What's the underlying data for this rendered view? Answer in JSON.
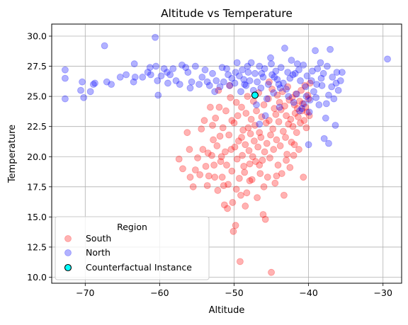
{
  "chart_data": {
    "type": "scatter",
    "title": "Altitude vs Temperature",
    "xlabel": "Altitude",
    "ylabel": "Temperature",
    "xlim": [
      -74.5,
      -27.5
    ],
    "ylim": [
      9.5,
      31.0
    ],
    "xticks": [
      -70,
      -60,
      -50,
      -40,
      -30
    ],
    "yticks": [
      10.0,
      12.5,
      15.0,
      17.5,
      20.0,
      22.5,
      25.0,
      27.5,
      30.0
    ],
    "grid": true,
    "legend": {
      "title": "Region",
      "placement": "lower-left",
      "entries": [
        "South",
        "North",
        "Counterfactual Instance"
      ]
    },
    "series": [
      {
        "name": "South",
        "color": "#ff0000",
        "alpha": 0.3,
        "points": [
          [
            -57.4,
            19.8
          ],
          [
            -56.9,
            19.0
          ],
          [
            -56.3,
            22.0
          ],
          [
            -56.0,
            20.6
          ],
          [
            -55.5,
            17.5
          ],
          [
            -55.2,
            18.9
          ],
          [
            -54.9,
            19.9
          ],
          [
            -54.6,
            18.5
          ],
          [
            -54.4,
            22.3
          ],
          [
            -54.2,
            20.6
          ],
          [
            -54.0,
            23.0
          ],
          [
            -53.8,
            19.2
          ],
          [
            -53.6,
            17.6
          ],
          [
            -53.4,
            18.4
          ],
          [
            -53.2,
            24.1
          ],
          [
            -53.0,
            20.1
          ],
          [
            -52.9,
            22.6
          ],
          [
            -52.7,
            19.3
          ],
          [
            -52.6,
            18.3
          ],
          [
            -52.5,
            23.2
          ],
          [
            -52.3,
            20.9
          ],
          [
            -52.2,
            17.2
          ],
          [
            -52.0,
            24.1
          ],
          [
            -51.9,
            21.7
          ],
          [
            -51.8,
            19.6
          ],
          [
            -51.6,
            18.3
          ],
          [
            -51.5,
            22.4
          ],
          [
            -51.4,
            17.6
          ],
          [
            -51.3,
            16.0
          ],
          [
            -51.2,
            20.4
          ],
          [
            -51.1,
            23.8
          ],
          [
            -51.0,
            19.3
          ],
          [
            -50.9,
            15.7
          ],
          [
            -50.8,
            17.7
          ],
          [
            -50.7,
            21.8
          ],
          [
            -50.6,
            25.9
          ],
          [
            -50.5,
            24.9
          ],
          [
            -50.4,
            20.6
          ],
          [
            -50.3,
            18.8
          ],
          [
            -50.2,
            16.2
          ],
          [
            -50.1,
            13.8
          ],
          [
            -50.0,
            22.8
          ],
          [
            -49.9,
            20.8
          ],
          [
            -49.8,
            14.3
          ],
          [
            -49.7,
            17.3
          ],
          [
            -49.6,
            19.8
          ],
          [
            -49.5,
            23.4
          ],
          [
            -49.4,
            21.3
          ],
          [
            -49.3,
            18.2
          ],
          [
            -49.2,
            11.3
          ],
          [
            -49.1,
            16.8
          ],
          [
            -49.0,
            24.1
          ],
          [
            -48.9,
            20.1
          ],
          [
            -48.8,
            22.2
          ],
          [
            -48.7,
            19.2
          ],
          [
            -48.6,
            18.7
          ],
          [
            -48.5,
            21.0
          ],
          [
            -48.4,
            23.6
          ],
          [
            -48.3,
            17.0
          ],
          [
            -48.2,
            25.0
          ],
          [
            -48.1,
            22.4
          ],
          [
            -48.0,
            20.5
          ],
          [
            -47.9,
            19.4
          ],
          [
            -47.8,
            21.9
          ],
          [
            -47.7,
            23.1
          ],
          [
            -47.6,
            18.1
          ],
          [
            -47.5,
            20.0
          ],
          [
            -47.4,
            24.6
          ],
          [
            -47.3,
            21.3
          ],
          [
            -47.2,
            22.6
          ],
          [
            -47.1,
            19.6
          ],
          [
            -47.0,
            23.8
          ],
          [
            -46.9,
            16.6
          ],
          [
            -46.8,
            20.8
          ],
          [
            -46.7,
            25.3
          ],
          [
            -46.6,
            22.0
          ],
          [
            -46.5,
            18.6
          ],
          [
            -46.4,
            21.6
          ],
          [
            -46.3,
            23.3
          ],
          [
            -46.2,
            19.7
          ],
          [
            -46.1,
            15.2
          ],
          [
            -46.0,
            24.3
          ],
          [
            -45.9,
            20.4
          ],
          [
            -45.8,
            14.8
          ],
          [
            -45.7,
            22.8
          ],
          [
            -45.6,
            21.1
          ],
          [
            -45.5,
            18.3
          ],
          [
            -45.4,
            24.8
          ],
          [
            -45.3,
            23.0
          ],
          [
            -45.2,
            19.9
          ],
          [
            -45.1,
            21.8
          ],
          [
            -45.0,
            10.4
          ],
          [
            -44.9,
            25.6
          ],
          [
            -44.8,
            22.3
          ],
          [
            -44.7,
            20.6
          ],
          [
            -44.6,
            24.0
          ],
          [
            -44.5,
            17.8
          ],
          [
            -44.4,
            23.5
          ],
          [
            -44.3,
            21.4
          ],
          [
            -44.2,
            25.1
          ],
          [
            -44.1,
            19.3
          ],
          [
            -44.0,
            22.9
          ],
          [
            -43.9,
            24.5
          ],
          [
            -43.8,
            20.9
          ],
          [
            -43.7,
            23.9
          ],
          [
            -43.6,
            18.6
          ],
          [
            -43.5,
            25.4
          ],
          [
            -43.4,
            22.1
          ],
          [
            -43.3,
            16.8
          ],
          [
            -43.2,
            24.2
          ],
          [
            -43.1,
            21.6
          ],
          [
            -43.0,
            23.4
          ],
          [
            -42.9,
            20.2
          ],
          [
            -42.8,
            25.8
          ],
          [
            -42.7,
            22.7
          ],
          [
            -42.6,
            24.7
          ],
          [
            -42.5,
            19.1
          ],
          [
            -42.4,
            23.1
          ],
          [
            -42.3,
            21.2
          ],
          [
            -42.2,
            24.9
          ],
          [
            -42.1,
            22.5
          ],
          [
            -42.0,
            20.1
          ],
          [
            -41.9,
            24.3
          ],
          [
            -41.8,
            23.6
          ],
          [
            -41.7,
            25.2
          ],
          [
            -41.6,
            22.0
          ],
          [
            -41.5,
            24.0
          ],
          [
            -41.4,
            23.3
          ],
          [
            -41.3,
            20.6
          ],
          [
            -41.2,
            24.6
          ],
          [
            -41.1,
            22.8
          ],
          [
            -41.0,
            25.5
          ],
          [
            -40.9,
            23.8
          ],
          [
            -40.8,
            24.4
          ],
          [
            -40.7,
            18.3
          ],
          [
            -40.6,
            23.0
          ],
          [
            -40.5,
            25.9
          ],
          [
            -40.4,
            24.1
          ],
          [
            -40.3,
            22.4
          ],
          [
            -40.2,
            23.7
          ],
          [
            -40.1,
            25.1
          ],
          [
            -40.0,
            24.8
          ],
          [
            -39.9,
            23.4
          ],
          [
            -39.8,
            26.1
          ],
          [
            -52.8,
            21.4
          ],
          [
            -51.7,
            20.0
          ],
          [
            -50.3,
            23.0
          ],
          [
            -49.0,
            21.6
          ],
          [
            -47.9,
            18.0
          ],
          [
            -46.6,
            19.3
          ],
          [
            -45.3,
            26.2
          ],
          [
            -44.3,
            18.4
          ],
          [
            -43.0,
            19.7
          ],
          [
            -41.9,
            21.0
          ],
          [
            -53.5,
            20.3
          ],
          [
            -55.9,
            18.3
          ],
          [
            -49.7,
            24.5
          ],
          [
            -52.1,
            25.5
          ],
          [
            -48.5,
            15.9
          ],
          [
            -46.0,
            17.5
          ]
        ]
      },
      {
        "name": "North",
        "color": "#0000ff",
        "alpha": 0.3,
        "points": [
          [
            -72.7,
            27.2
          ],
          [
            -72.7,
            26.5
          ],
          [
            -72.7,
            24.8
          ],
          [
            -70.6,
            25.5
          ],
          [
            -70.4,
            26.2
          ],
          [
            -70.2,
            24.9
          ],
          [
            -69.3,
            25.4
          ],
          [
            -68.9,
            26.0
          ],
          [
            -68.7,
            26.1
          ],
          [
            -67.4,
            29.2
          ],
          [
            -67.1,
            26.2
          ],
          [
            -65.3,
            26.6
          ],
          [
            -64.5,
            26.8
          ],
          [
            -63.5,
            26.2
          ],
          [
            -63.4,
            27.7
          ],
          [
            -63.3,
            26.6
          ],
          [
            -61.6,
            27.0
          ],
          [
            -61.3,
            27.4
          ],
          [
            -61.2,
            26.8
          ],
          [
            -60.6,
            29.9
          ],
          [
            -60.5,
            27.5
          ],
          [
            -60.3,
            26.3
          ],
          [
            -60.2,
            25.1
          ],
          [
            -59.8,
            26.7
          ],
          [
            -59.4,
            27.3
          ],
          [
            -59.0,
            27.0
          ],
          [
            -58.6,
            26.8
          ],
          [
            -58.2,
            27.3
          ],
          [
            -57.8,
            26.3
          ],
          [
            -57.3,
            26.0
          ],
          [
            -57.0,
            27.6
          ],
          [
            -56.5,
            27.4
          ],
          [
            -55.9,
            25.7
          ],
          [
            -55.7,
            26.2
          ],
          [
            -55.2,
            27.5
          ],
          [
            -54.7,
            26.0
          ],
          [
            -54.3,
            26.6
          ],
          [
            -53.9,
            27.2
          ],
          [
            -53.3,
            25.9
          ],
          [
            -52.9,
            26.9
          ],
          [
            -52.4,
            26.3
          ],
          [
            -51.9,
            25.8
          ],
          [
            -51.6,
            27.4
          ],
          [
            -51.4,
            26.2
          ],
          [
            -51.0,
            27.3
          ],
          [
            -50.6,
            25.9
          ],
          [
            -50.3,
            26.5
          ],
          [
            -49.9,
            26.1
          ],
          [
            -49.6,
            27.8
          ],
          [
            -49.3,
            26.7
          ],
          [
            -49.1,
            25.4
          ],
          [
            -48.9,
            27.2
          ],
          [
            -48.7,
            26.4
          ],
          [
            -48.4,
            25.9
          ],
          [
            -48.1,
            27.0
          ],
          [
            -47.9,
            26.3
          ],
          [
            -47.7,
            27.8
          ],
          [
            -47.4,
            25.5
          ],
          [
            -47.2,
            26.9
          ],
          [
            -46.9,
            26.2
          ],
          [
            -46.6,
            27.5
          ],
          [
            -46.4,
            25.7
          ],
          [
            -46.1,
            26.6
          ],
          [
            -45.9,
            27.3
          ],
          [
            -45.6,
            24.8
          ],
          [
            -45.4,
            26.0
          ],
          [
            -45.1,
            28.2
          ],
          [
            -44.9,
            26.8
          ],
          [
            -44.7,
            25.3
          ],
          [
            -44.4,
            27.1
          ],
          [
            -44.2,
            26.4
          ],
          [
            -43.9,
            24.1
          ],
          [
            -43.7,
            27.4
          ],
          [
            -43.4,
            26.1
          ],
          [
            -43.2,
            29.0
          ],
          [
            -43.0,
            25.6
          ],
          [
            -42.8,
            27.0
          ],
          [
            -42.5,
            26.5
          ],
          [
            -42.3,
            28.0
          ],
          [
            -42.0,
            24.5
          ],
          [
            -41.8,
            26.9
          ],
          [
            -41.6,
            25.2
          ],
          [
            -41.3,
            27.2
          ],
          [
            -41.1,
            26.3
          ],
          [
            -40.9,
            24.0
          ],
          [
            -40.7,
            27.6
          ],
          [
            -40.4,
            25.8
          ],
          [
            -40.2,
            26.7
          ],
          [
            -40.0,
            21.0
          ],
          [
            -39.8,
            24.7
          ],
          [
            -39.5,
            27.1
          ],
          [
            -39.3,
            25.4
          ],
          [
            -39.1,
            28.8
          ],
          [
            -38.9,
            26.0
          ],
          [
            -38.6,
            24.3
          ],
          [
            -38.4,
            27.8
          ],
          [
            -38.2,
            25.9
          ],
          [
            -38.0,
            26.9
          ],
          [
            -37.7,
            23.2
          ],
          [
            -37.5,
            27.5
          ],
          [
            -37.3,
            25.1
          ],
          [
            -37.1,
            28.9
          ],
          [
            -36.8,
            26.6
          ],
          [
            -36.6,
            24.8
          ],
          [
            -36.4,
            22.6
          ],
          [
            -36.2,
            27.0
          ],
          [
            -36.0,
            25.5
          ],
          [
            -35.7,
            26.3
          ],
          [
            -35.5,
            27.0
          ],
          [
            -29.4,
            28.1
          ],
          [
            -45.8,
            23.4
          ],
          [
            -46.6,
            22.7
          ],
          [
            -44.0,
            26.0
          ],
          [
            -41.5,
            27.7
          ],
          [
            -39.6,
            26.3
          ],
          [
            -38.8,
            27.3
          ],
          [
            -37.9,
            21.5
          ],
          [
            -37.3,
            21.1
          ],
          [
            -39.9,
            23.7
          ],
          [
            -40.6,
            24.4
          ],
          [
            -41.2,
            23.8
          ],
          [
            -42.7,
            25.0
          ],
          [
            -43.8,
            25.7
          ],
          [
            -45.0,
            27.7
          ],
          [
            -47.0,
            24.3
          ],
          [
            -48.2,
            27.5
          ],
          [
            -50.8,
            26.8
          ],
          [
            -52.6,
            25.4
          ],
          [
            -53.6,
            26.2
          ],
          [
            -56.2,
            27.0
          ],
          [
            -58.9,
            26.1
          ],
          [
            -62.3,
            26.6
          ],
          [
            -66.5,
            26.0
          ],
          [
            -40.3,
            25.0
          ],
          [
            -39.0,
            24.9
          ],
          [
            -38.3,
            26.5
          ],
          [
            -37.6,
            24.4
          ],
          [
            -36.9,
            25.8
          ],
          [
            -36.3,
            26.1
          ],
          [
            -42.1,
            26.8
          ],
          [
            -44.6,
            26.6
          ],
          [
            -46.3,
            26.9
          ],
          [
            -48.6,
            26.0
          ],
          [
            -49.8,
            27.0
          ]
        ]
      }
    ],
    "highlight": {
      "name": "Counterfactual Instance",
      "color": "#00ffff",
      "edge": "#000000",
      "point": [
        -47.2,
        25.1
      ]
    }
  }
}
